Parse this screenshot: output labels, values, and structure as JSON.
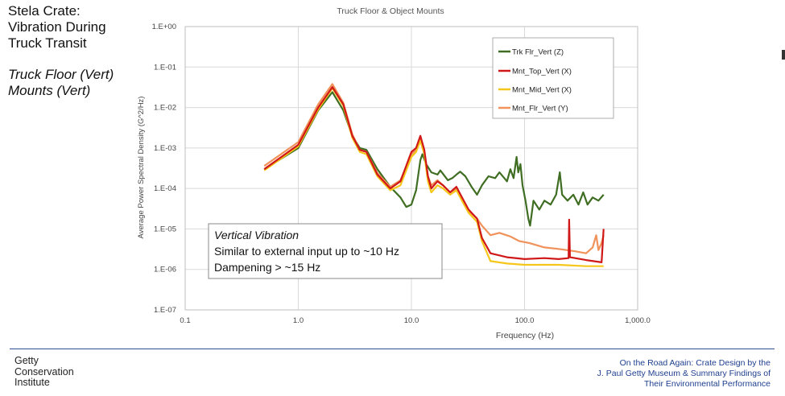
{
  "slide": {
    "title_lines": [
      "Stela Crate:",
      "Vibration During",
      "Truck Transit"
    ],
    "subtitle_lines": [
      "Truck Floor (Vert)",
      "Mounts (Vert)"
    ]
  },
  "footer": {
    "institute_lines": [
      "Getty",
      "Conservation",
      "Institute"
    ],
    "credit_lines": [
      "On the Road Again: Crate Design by the",
      "J. Paul Getty Museum & Summary Findings of",
      "Their Environmental Performance"
    ]
  },
  "chart_data": {
    "type": "line",
    "title": "Truck Floor & Object Mounts",
    "xlabel": "Frequency (Hz)",
    "ylabel": "Average Power Spectral Density (G^2/Hz)",
    "xscale": "log",
    "yscale": "log",
    "xlim": [
      0.1,
      1000
    ],
    "ylim": [
      1e-07,
      1
    ],
    "xticks": [
      0.1,
      1,
      10,
      100,
      1000
    ],
    "xtick_labels": [
      "0.1",
      "1.0",
      "10.0",
      "100.0",
      "1,000.0"
    ],
    "yticks": [
      1,
      0.1,
      0.01,
      0.001,
      0.0001,
      1e-05,
      1e-06,
      1e-07
    ],
    "ytick_labels": [
      "1.E+00",
      "1.E-01",
      "1.E-02",
      "1.E-03",
      "1.E-04",
      "1.E-05",
      "1.E-06",
      "1.E-07"
    ],
    "grid": true,
    "legend_position": "top-right",
    "series": [
      {
        "name": "Trk Flr_Vert (Z)",
        "color": "#3f6e23",
        "points": [
          [
            0.5,
            0.0003
          ],
          [
            1.0,
            0.001
          ],
          [
            1.5,
            0.0085
          ],
          [
            2.0,
            0.024
          ],
          [
            2.5,
            0.0085
          ],
          [
            3.0,
            0.002
          ],
          [
            3.5,
            0.001
          ],
          [
            4.0,
            0.0009
          ],
          [
            5.0,
            0.0003
          ],
          [
            6.5,
            0.00011
          ],
          [
            8.0,
            6e-05
          ],
          [
            9.0,
            3.5e-05
          ],
          [
            10.0,
            4e-05
          ],
          [
            11.0,
            9e-05
          ],
          [
            12.0,
            0.0005
          ],
          [
            12.5,
            0.0007
          ],
          [
            13.5,
            0.0004
          ],
          [
            15.0,
            0.00025
          ],
          [
            17.0,
            0.00022
          ],
          [
            18.0,
            0.00028
          ],
          [
            21.0,
            0.00016
          ],
          [
            23.0,
            0.00018
          ],
          [
            25.0,
            0.00022
          ],
          [
            27.0,
            0.00026
          ],
          [
            30.0,
            0.0002
          ],
          [
            34.0,
            0.00011
          ],
          [
            38.0,
            7e-05
          ],
          [
            42.0,
            0.00012
          ],
          [
            48.0,
            0.0002
          ],
          [
            55.0,
            0.00018
          ],
          [
            60.0,
            0.00025
          ],
          [
            70.0,
            0.00015
          ],
          [
            75.0,
            0.0003
          ],
          [
            80.0,
            0.00018
          ],
          [
            85.0,
            0.0006
          ],
          [
            88.0,
            0.00025
          ],
          [
            92.0,
            0.0004
          ],
          [
            96.0,
            0.00012
          ],
          [
            102.0,
            5e-05
          ],
          [
            108.0,
            1.8e-05
          ],
          [
            112.0,
            1.2e-05
          ],
          [
            120.0,
            5e-05
          ],
          [
            135.0,
            3e-05
          ],
          [
            150.0,
            5e-05
          ],
          [
            170.0,
            4e-05
          ],
          [
            190.0,
            7e-05
          ],
          [
            205.0,
            0.00025
          ],
          [
            215.0,
            7e-05
          ],
          [
            240.0,
            5e-05
          ],
          [
            270.0,
            7e-05
          ],
          [
            300.0,
            4e-05
          ],
          [
            330.0,
            8e-05
          ],
          [
            360.0,
            4e-05
          ],
          [
            400.0,
            6e-05
          ],
          [
            450.0,
            5e-05
          ],
          [
            500.0,
            7e-05
          ]
        ]
      },
      {
        "name": "Mnt_Top_Vert (X)",
        "color": "#d01818",
        "points": [
          [
            0.5,
            0.0003
          ],
          [
            1.0,
            0.0012
          ],
          [
            1.5,
            0.01
          ],
          [
            2.0,
            0.032
          ],
          [
            2.5,
            0.012
          ],
          [
            3.0,
            0.002
          ],
          [
            3.5,
            0.0009
          ],
          [
            4.0,
            0.0008
          ],
          [
            5.0,
            0.00022
          ],
          [
            6.5,
            0.0001
          ],
          [
            8.0,
            0.00015
          ],
          [
            10.0,
            0.0008
          ],
          [
            11.0,
            0.001
          ],
          [
            12.0,
            0.002
          ],
          [
            13.0,
            0.0009
          ],
          [
            14.0,
            0.0002
          ],
          [
            15.0,
            0.0001
          ],
          [
            17.0,
            0.00015
          ],
          [
            19.0,
            0.00012
          ],
          [
            22.0,
            8e-05
          ],
          [
            25.0,
            0.00011
          ],
          [
            28.0,
            6e-05
          ],
          [
            32.0,
            3e-05
          ],
          [
            38.0,
            1.8e-05
          ],
          [
            42.0,
            6e-06
          ],
          [
            50.0,
            2.5e-06
          ],
          [
            70.0,
            2e-06
          ],
          [
            100.0,
            1.8e-06
          ],
          [
            150.0,
            1.9e-06
          ],
          [
            200.0,
            1.8e-06
          ],
          [
            245.0,
            1.9e-06
          ],
          [
            248.0,
            1.7e-05
          ],
          [
            252.0,
            2e-06
          ],
          [
            350.0,
            1.7e-06
          ],
          [
            480.0,
            1.5e-06
          ],
          [
            500.0,
            1e-05
          ]
        ]
      },
      {
        "name": "Mnt_Mid_Vert (X)",
        "color": "#f5c71a",
        "points": [
          [
            0.5,
            0.00028
          ],
          [
            1.0,
            0.0011
          ],
          [
            1.5,
            0.009
          ],
          [
            2.0,
            0.03
          ],
          [
            2.5,
            0.011
          ],
          [
            3.0,
            0.0018
          ],
          [
            3.5,
            0.0008
          ],
          [
            4.0,
            0.0007
          ],
          [
            5.0,
            0.0002
          ],
          [
            6.5,
            9e-05
          ],
          [
            8.0,
            0.00012
          ],
          [
            10.0,
            0.0006
          ],
          [
            11.0,
            0.0008
          ],
          [
            12.0,
            0.0015
          ],
          [
            13.0,
            0.0007
          ],
          [
            14.0,
            0.00015
          ],
          [
            15.0,
            8e-05
          ],
          [
            17.0,
            0.00012
          ],
          [
            19.0,
            0.0001
          ],
          [
            22.0,
            7e-05
          ],
          [
            25.0,
            9e-05
          ],
          [
            28.0,
            5e-05
          ],
          [
            32.0,
            2.5e-05
          ],
          [
            38.0,
            1.5e-05
          ],
          [
            42.0,
            5e-06
          ],
          [
            50.0,
            1.6e-06
          ],
          [
            70.0,
            1.4e-06
          ],
          [
            100.0,
            1.3e-06
          ],
          [
            200.0,
            1.3e-06
          ],
          [
            350.0,
            1.2e-06
          ],
          [
            500.0,
            1.2e-06
          ]
        ]
      },
      {
        "name": "Mnt_Flr_Vert (Y)",
        "color": "#f0925a",
        "points": [
          [
            0.5,
            0.00036
          ],
          [
            1.0,
            0.0014
          ],
          [
            1.5,
            0.012
          ],
          [
            2.0,
            0.038
          ],
          [
            2.5,
            0.013
          ],
          [
            3.0,
            0.0022
          ],
          [
            3.5,
            0.0009
          ],
          [
            4.0,
            0.0008
          ],
          [
            5.0,
            0.00024
          ],
          [
            6.5,
            0.00011
          ],
          [
            8.0,
            0.00016
          ],
          [
            10.0,
            0.0007
          ],
          [
            11.0,
            0.0009
          ],
          [
            12.0,
            0.0016
          ],
          [
            13.0,
            0.0008
          ],
          [
            14.0,
            0.0002
          ],
          [
            15.0,
            0.00012
          ],
          [
            17.0,
            0.00016
          ],
          [
            19.0,
            0.00012
          ],
          [
            22.0,
            8e-05
          ],
          [
            25.0,
            0.0001
          ],
          [
            28.0,
            6e-05
          ],
          [
            32.0,
            2.8e-05
          ],
          [
            38.0,
            1.8e-05
          ],
          [
            42.0,
            1.2e-05
          ],
          [
            50.0,
            7e-06
          ],
          [
            60.0,
            8e-06
          ],
          [
            75.0,
            6.5e-06
          ],
          [
            90.0,
            5e-06
          ],
          [
            110.0,
            4.5e-06
          ],
          [
            150.0,
            3.5e-06
          ],
          [
            200.0,
            3.2e-06
          ],
          [
            280.0,
            2.8e-06
          ],
          [
            350.0,
            2.5e-06
          ],
          [
            400.0,
            3.5e-06
          ],
          [
            430.0,
            7e-06
          ],
          [
            450.0,
            3e-06
          ],
          [
            480.0,
            4.5e-06
          ],
          [
            500.0,
            7e-06
          ]
        ]
      }
    ],
    "annotation": {
      "heading": "Vertical Vibration",
      "lines": [
        "Similar to external input up to ~10 Hz",
        "Dampening > ~15 Hz"
      ]
    }
  }
}
